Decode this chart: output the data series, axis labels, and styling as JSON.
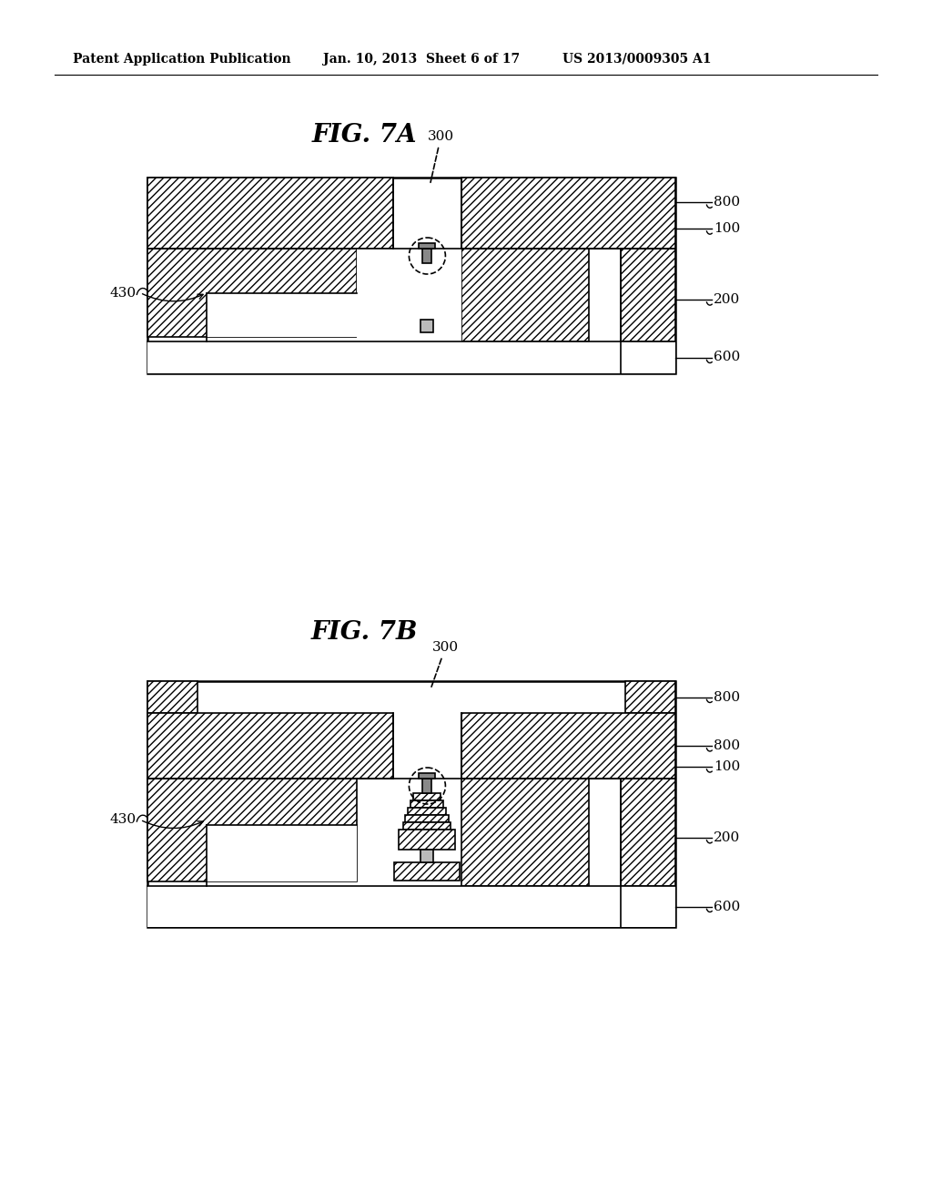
{
  "background_color": "#ffffff",
  "header_left": "Patent Application Publication",
  "header_mid": "Jan. 10, 2013  Sheet 6 of 17",
  "header_right": "US 2013/0009305 A1",
  "fig7a_title": "FIG. 7A",
  "fig7b_title": "FIG. 7B",
  "line_color": "#000000",
  "hatch_color": "#555555",
  "fill_gray_dark": "#888888",
  "fill_gray_mid": "#bbbbbb",
  "fill_gray_light": "#dddddd"
}
